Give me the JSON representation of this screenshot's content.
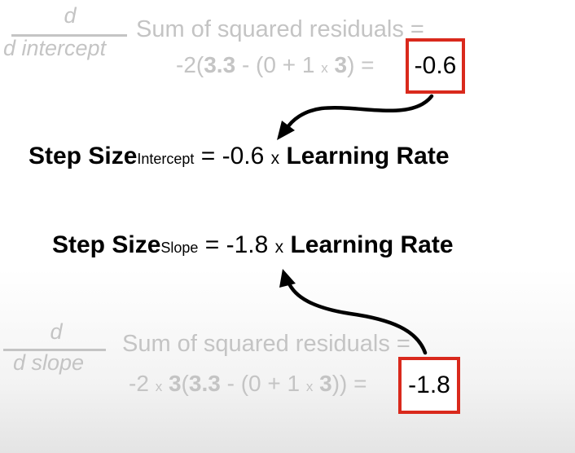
{
  "top_panel": {
    "frac_num": "d",
    "frac_den": "d intercept",
    "title": "Sum of squared residuals =",
    "eq_prefix": "-2(",
    "eq_bold_a": "3.3",
    "eq_mid": " - (0 + 1 ",
    "eq_times": "x",
    "eq_bold_b": "3",
    "eq_suffix": ") =",
    "result": "-0.6"
  },
  "step_intercept": {
    "label": "Step Size",
    "sub": "Intercept",
    "equals": " = -0.6 ",
    "times": "x",
    "rate": "Learning Rate"
  },
  "step_slope": {
    "label": "Step Size",
    "sub": "Slope",
    "equals": " = -1.8 ",
    "times": "x",
    "rate": "Learning Rate"
  },
  "bottom_panel": {
    "frac_num": "d",
    "frac_den": "d slope",
    "title": "Sum of squared residuals =",
    "eq_prefix": "-2 ",
    "eq_times1": "x",
    "eq_bold_a": " 3",
    "eq_open": "(",
    "eq_bold_b": "3.3",
    "eq_mid": " - (0 + 1 ",
    "eq_times2": "x",
    "eq_bold_c": " 3",
    "eq_suffix": ")) =",
    "result": "-1.8"
  },
  "colors": {
    "highlight": "#d9291c",
    "faded_text": "#c4c4c4",
    "text": "#000000"
  }
}
